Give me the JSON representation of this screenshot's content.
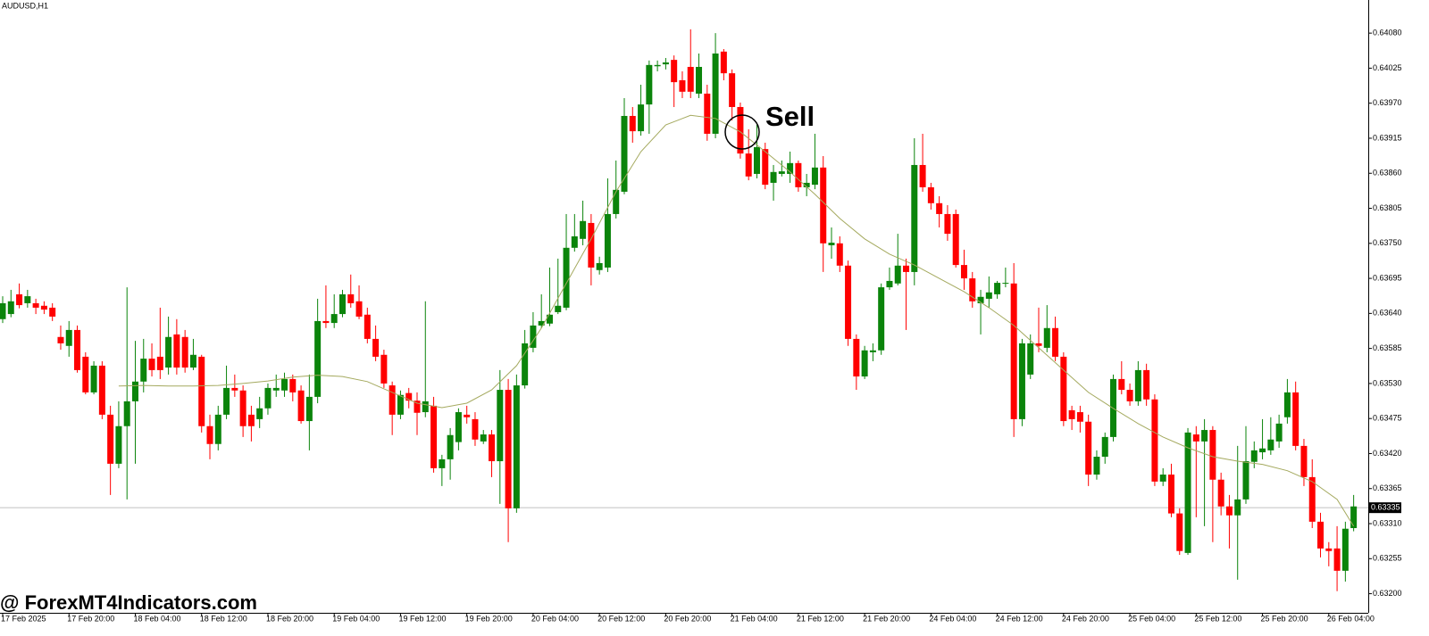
{
  "chart_data": {
    "type": "candlestick",
    "title": "AUDUSD,H1",
    "watermark": "@ ForexMT4Indicators.com",
    "annotations": [
      {
        "text": "Sell"
      }
    ],
    "up_color": "#0b840b",
    "down_color": "#ff0000",
    "categories": [
      "17 Feb 2025",
      null,
      null,
      null,
      null,
      null,
      null,
      null,
      "17 Feb 20:00",
      null,
      null,
      null,
      null,
      null,
      null,
      null,
      "18 Feb 04:00",
      null,
      null,
      null,
      null,
      null,
      null,
      null,
      "18 Feb 12:00",
      null,
      null,
      null,
      null,
      null,
      null,
      null,
      "18 Feb 20:00",
      null,
      null,
      null,
      null,
      null,
      null,
      null,
      "19 Feb 04:00",
      null,
      null,
      null,
      null,
      null,
      null,
      null,
      "19 Feb 12:00",
      null,
      null,
      null,
      null,
      null,
      null,
      null,
      "19 Feb 20:00",
      null,
      null,
      null,
      null,
      null,
      null,
      null,
      "20 Feb 04:00",
      null,
      null,
      null,
      null,
      null,
      null,
      null,
      "20 Feb 12:00",
      null,
      null,
      null,
      null,
      null,
      null,
      null,
      "20 Feb 20:00",
      null,
      null,
      null,
      null,
      null,
      null,
      null,
      "21 Feb 04:00",
      null,
      null,
      null,
      null,
      null,
      null,
      null,
      "21 Feb 12:00",
      null,
      null,
      null,
      null,
      null,
      null,
      null,
      "21 Feb 20:00",
      null,
      null,
      null,
      null,
      null,
      null,
      null,
      "24 Feb 04:00",
      null,
      null,
      null,
      null,
      null,
      null,
      null,
      "24 Feb 12:00",
      null,
      null,
      null,
      null,
      null,
      null,
      null,
      "24 Feb 20:00",
      null,
      null,
      null,
      null,
      null,
      null,
      null,
      "25 Feb 04:00",
      null,
      null,
      null,
      null,
      null,
      null,
      null,
      "25 Feb 12:00",
      null,
      null,
      null,
      null,
      null,
      null,
      null,
      "25 Feb 20:00",
      null,
      null,
      null,
      null,
      null,
      null,
      null,
      "26 Feb 04:00",
      null,
      null,
      null
    ],
    "open": [
      0.63631,
      0.63639,
      0.6367,
      0.63656,
      0.63656,
      0.63652,
      0.63649,
      0.63603,
      0.63589,
      0.63614,
      0.63572,
      0.63516,
      0.63558,
      0.63481,
      0.63404,
      0.63463,
      0.63502,
      0.63533,
      0.63569,
      0.63572,
      0.63555,
      0.63607,
      0.63603,
      0.63555,
      0.63572,
      0.63463,
      0.63435,
      0.63481,
      0.63523,
      0.63519,
      0.63481,
      0.63474,
      0.63491,
      0.63519,
      0.63519,
      0.63537,
      0.63519,
      0.63471,
      0.63509,
      0.63628,
      0.63625,
      0.63639,
      0.6367,
      0.63659,
      0.63638,
      0.636,
      0.63575,
      0.63527,
      0.63481,
      0.63515,
      0.63503,
      0.63485,
      0.63495,
      0.63397,
      0.63411,
      0.63438,
      0.63481,
      0.63474,
      0.63439,
      0.6345,
      0.63408,
      0.6352,
      0.63334,
      0.63527,
      0.63586,
      0.63621,
      0.63624,
      0.63642,
      0.63649,
      0.63743,
      0.63757,
      0.63782,
      0.63708,
      0.63712,
      0.63796,
      0.63831,
      0.6395,
      0.63926,
      0.63968,
      0.64028,
      0.64031,
      0.64038,
      0.64006,
      0.64027,
      0.63985,
      0.63985,
      0.63922,
      0.64051,
      0.64017,
      0.63964,
      0.63891,
      0.63859,
      0.63898,
      0.63845,
      0.63859,
      0.63859,
      0.63876,
      0.63838,
      0.63842,
      0.63869,
      0.63747,
      0.6375,
      0.63715,
      0.636,
      0.63541,
      0.63579,
      0.63582,
      0.63681,
      0.63687,
      0.63715,
      0.63705,
      0.63873,
      0.63838,
      0.63813,
      0.63796,
      0.63796,
      0.63716,
      0.63695,
      0.63656,
      0.63663,
      0.6367,
      0.63687,
      0.63687,
      0.63474,
      0.63544,
      0.63593,
      0.63586,
      0.63617,
      0.63572,
      0.63488,
      0.63485,
      0.6347,
      0.63387,
      0.63415,
      0.63446,
      0.63537,
      0.6352,
      0.63502,
      0.63551,
      0.63505,
      0.63376,
      0.63387,
      0.63326,
      0.63264,
      0.6345,
      0.63439,
      0.63457,
      0.63379,
      0.63337,
      0.63323,
      0.63348,
      0.63407,
      0.63422,
      0.63425,
      0.63439,
      0.63477,
      0.63516,
      0.63432,
      0.63383,
      0.63313,
      0.63271,
      0.63271,
      0.63236,
      0.63303
    ],
    "high": [
      0.63667,
      0.63677,
      0.63687,
      0.63677,
      0.63663,
      0.63659,
      0.63656,
      0.63621,
      0.63628,
      0.63621,
      0.63579,
      0.63565,
      0.63565,
      0.63495,
      0.63502,
      0.63681,
      0.63597,
      0.636,
      0.63593,
      0.63649,
      0.63635,
      0.63631,
      0.63614,
      0.636,
      0.63575,
      0.63481,
      0.63495,
      0.63558,
      0.63544,
      0.63527,
      0.63495,
      0.63509,
      0.6353,
      0.63544,
      0.63547,
      0.63544,
      0.63527,
      0.63544,
      0.63663,
      0.63684,
      0.6367,
      0.63677,
      0.63701,
      0.63684,
      0.63649,
      0.63621,
      0.63583,
      0.63533,
      0.63519,
      0.63523,
      0.63516,
      0.63659,
      0.63509,
      0.63418,
      0.6346,
      0.63491,
      0.63495,
      0.63485,
      0.63457,
      0.63457,
      0.63551,
      0.63537,
      0.63544,
      0.63614,
      0.63642,
      0.6367,
      0.63712,
      0.63726,
      0.63796,
      0.63796,
      0.63817,
      0.63796,
      0.63729,
      0.63852,
      0.6388,
      0.63978,
      0.63964,
      0.63999,
      0.64037,
      0.64037,
      0.64041,
      0.64045,
      0.6402,
      0.64086,
      0.64048,
      0.63999,
      0.6408,
      0.64055,
      0.64023,
      0.63971,
      0.63929,
      0.63936,
      0.63908,
      0.63873,
      0.6388,
      0.63894,
      0.6388,
      0.63859,
      0.63922,
      0.63887,
      0.63775,
      0.63761,
      0.63723,
      0.63607,
      0.63589,
      0.63593,
      0.63687,
      0.63712,
      0.63765,
      0.63726,
      0.63915,
      0.63922,
      0.63845,
      0.63824,
      0.6381,
      0.63803,
      0.6374,
      0.63705,
      0.63677,
      0.63698,
      0.63691,
      0.63712,
      0.63719,
      0.636,
      0.63607,
      0.63649,
      0.63653,
      0.63635,
      0.63579,
      0.63495,
      0.63495,
      0.63481,
      0.63425,
      0.63453,
      0.63544,
      0.63565,
      0.6353,
      0.63565,
      0.63561,
      0.63513,
      0.63397,
      0.63404,
      0.63334,
      0.6346,
      0.63463,
      0.63474,
      0.63463,
      0.6339,
      0.63355,
      0.63432,
      0.63463,
      0.63439,
      0.63474,
      0.63477,
      0.63481,
      0.63537,
      0.63533,
      0.63443,
      0.63411,
      0.63327,
      0.63281,
      0.63306,
      0.63313,
      0.63355
    ],
    "low": [
      0.63625,
      0.63634,
      0.63648,
      0.63649,
      0.63639,
      0.63639,
      0.63628,
      0.63583,
      0.63572,
      0.63547,
      0.63513,
      0.63513,
      0.63474,
      0.63355,
      0.63397,
      0.63348,
      0.63404,
      0.63516,
      0.63541,
      0.63537,
      0.63544,
      0.63544,
      0.63547,
      0.63551,
      0.63453,
      0.63411,
      0.63425,
      0.63474,
      0.63509,
      0.63446,
      0.63439,
      0.6346,
      0.63481,
      0.63509,
      0.63509,
      0.63502,
      0.63467,
      0.63425,
      0.63499,
      0.63617,
      0.63617,
      0.63634,
      0.63649,
      0.63631,
      0.63593,
      0.63565,
      0.63523,
      0.63449,
      0.63474,
      0.63491,
      0.63449,
      0.63477,
      0.6339,
      0.63369,
      0.63379,
      0.63425,
      0.63467,
      0.63432,
      0.63435,
      0.63383,
      0.63341,
      0.63281,
      0.63327,
      0.63522,
      0.63579,
      0.63617,
      0.6362,
      0.63639,
      0.63645,
      0.63737,
      0.63747,
      0.63684,
      0.63701,
      0.63705,
      0.63789,
      0.63827,
      0.63908,
      0.63919,
      0.63922,
      0.6402,
      0.64023,
      0.63964,
      0.63978,
      0.63978,
      0.63978,
      0.63911,
      0.63915,
      0.64006,
      0.63943,
      0.63883,
      0.63849,
      0.63852,
      0.63835,
      0.63817,
      0.63855,
      0.63845,
      0.63831,
      0.63824,
      0.63835,
      0.63705,
      0.63726,
      0.63705,
      0.63589,
      0.6352,
      0.63537,
      0.63565,
      0.63575,
      0.63677,
      0.63684,
      0.63614,
      0.63684,
      0.63831,
      0.63803,
      0.63775,
      0.63754,
      0.63712,
      0.63677,
      0.63649,
      0.63607,
      0.63649,
      0.63663,
      0.63681,
      0.63446,
      0.63463,
      0.63537,
      0.63579,
      0.63579,
      0.63565,
      0.63463,
      0.63457,
      0.63453,
      0.63369,
      0.63379,
      0.63404,
      0.63439,
      0.63513,
      0.63495,
      0.63495,
      0.63495,
      0.63369,
      0.63369,
      0.6332,
      0.63261,
      0.63261,
      0.6332,
      0.63306,
      0.63281,
      0.63323,
      0.63271,
      0.63222,
      0.63341,
      0.63397,
      0.63411,
      0.63418,
      0.63429,
      0.63467,
      0.63425,
      0.63369,
      0.63303,
      0.63257,
      0.63243,
      0.63204,
      0.63219,
      0.63298
    ],
    "close": [
      0.63656,
      0.63659,
      0.63653,
      0.63667,
      0.63649,
      0.63646,
      0.63635,
      0.63593,
      0.63614,
      0.63551,
      0.63516,
      0.63558,
      0.63481,
      0.63404,
      0.63463,
      0.63502,
      0.63533,
      0.63569,
      0.63551,
      0.63551,
      0.63603,
      0.63555,
      0.63555,
      0.63575,
      0.63463,
      0.63435,
      0.63481,
      0.63523,
      0.63519,
      0.63463,
      0.63463,
      0.63491,
      0.63523,
      0.63523,
      0.63537,
      0.63516,
      0.63471,
      0.63509,
      0.63628,
      0.63625,
      0.63639,
      0.6367,
      0.63656,
      0.63635,
      0.636,
      0.63572,
      0.6353,
      0.63481,
      0.63512,
      0.63503,
      0.63484,
      0.63502,
      0.63397,
      0.63411,
      0.63449,
      0.63485,
      0.63477,
      0.63442,
      0.6345,
      0.63408,
      0.6352,
      0.63334,
      0.63527,
      0.63593,
      0.63621,
      0.63628,
      0.63638,
      0.63652,
      0.63743,
      0.63761,
      0.63785,
      0.63712,
      0.63719,
      0.63796,
      0.63834,
      0.6395,
      0.63926,
      0.63968,
      0.6403,
      0.6403,
      0.64034,
      0.64003,
      0.63988,
      0.63988,
      0.64027,
      0.63922,
      0.64048,
      0.64017,
      0.63964,
      0.63891,
      0.63855,
      0.63901,
      0.63842,
      0.63862,
      0.63863,
      0.63876,
      0.63838,
      0.63845,
      0.63869,
      0.6375,
      0.63751,
      0.63715,
      0.636,
      0.63541,
      0.63582,
      0.63582,
      0.63681,
      0.63691,
      0.63715,
      0.63705,
      0.63873,
      0.63838,
      0.63813,
      0.63796,
      0.63765,
      0.63716,
      0.63695,
      0.63659,
      0.63666,
      0.63673,
      0.63688,
      0.63688,
      0.63474,
      0.63593,
      0.63593,
      0.63589,
      0.63617,
      0.63572,
      0.63471,
      0.63474,
      0.6347,
      0.63387,
      0.63415,
      0.63446,
      0.63537,
      0.6352,
      0.63502,
      0.63551,
      0.63505,
      0.63376,
      0.63387,
      0.63326,
      0.63267,
      0.63453,
      0.63439,
      0.63457,
      0.63379,
      0.63337,
      0.63323,
      0.63348,
      0.63408,
      0.63425,
      0.63428,
      0.63442,
      0.63467,
      0.63516,
      0.63432,
      0.63383,
      0.63313,
      0.63271,
      0.63267,
      0.63236,
      0.63302,
      0.63337
    ],
    "overlay": {
      "color": "#a4a95e",
      "x": [
        14,
        17,
        20,
        23,
        26,
        29,
        32,
        35,
        38,
        41,
        44,
        47,
        50,
        53,
        56,
        59,
        62,
        65,
        68,
        71,
        74,
        77,
        80,
        83,
        86,
        89,
        92,
        95,
        98,
        101,
        104,
        107,
        110,
        113,
        116,
        119,
        122,
        125,
        128,
        131,
        134,
        137,
        140,
        143,
        146,
        149,
        152,
        155,
        158,
        161,
        163
      ],
      "values": [
        0.63526,
        0.63527,
        0.63526,
        0.63526,
        0.63527,
        0.6353,
        0.63534,
        0.6354,
        0.63543,
        0.63541,
        0.63533,
        0.63516,
        0.63499,
        0.63492,
        0.63499,
        0.6352,
        0.63558,
        0.63617,
        0.63687,
        0.63757,
        0.63831,
        0.63894,
        0.63936,
        0.63951,
        0.63946,
        0.63925,
        0.63894,
        0.63862,
        0.63827,
        0.63789,
        0.63757,
        0.63733,
        0.63716,
        0.63695,
        0.63674,
        0.63649,
        0.63621,
        0.63586,
        0.63551,
        0.63516,
        0.63491,
        0.63467,
        0.63446,
        0.63429,
        0.63415,
        0.63408,
        0.63403,
        0.63393,
        0.63376,
        0.63348,
        0.63306
      ]
    },
    "current_price": {
      "value": 0.63335,
      "label": "0.63335"
    },
    "ylim": [
      0.6317,
      0.64132
    ],
    "yticks": [
      {
        "value": 0.6408,
        "label": "0.64080"
      },
      0.64025,
      {
        "value": 0.6397,
        "label": "0.63970"
      },
      0.63915,
      {
        "value": 0.6386,
        "label": "0.63860"
      },
      0.63805,
      {
        "value": 0.6375,
        "label": "0.63750"
      },
      0.63695,
      {
        "value": 0.6364,
        "label": "0.63640"
      },
      0.63585,
      {
        "value": 0.6353,
        "label": "0.63530"
      },
      0.63475,
      {
        "value": 0.6342,
        "label": "0.63420"
      },
      0.63365,
      {
        "value": 0.6331,
        "label": "0.63310"
      },
      0.63255,
      {
        "value": 0.632,
        "label": "0.63200"
      }
    ]
  }
}
